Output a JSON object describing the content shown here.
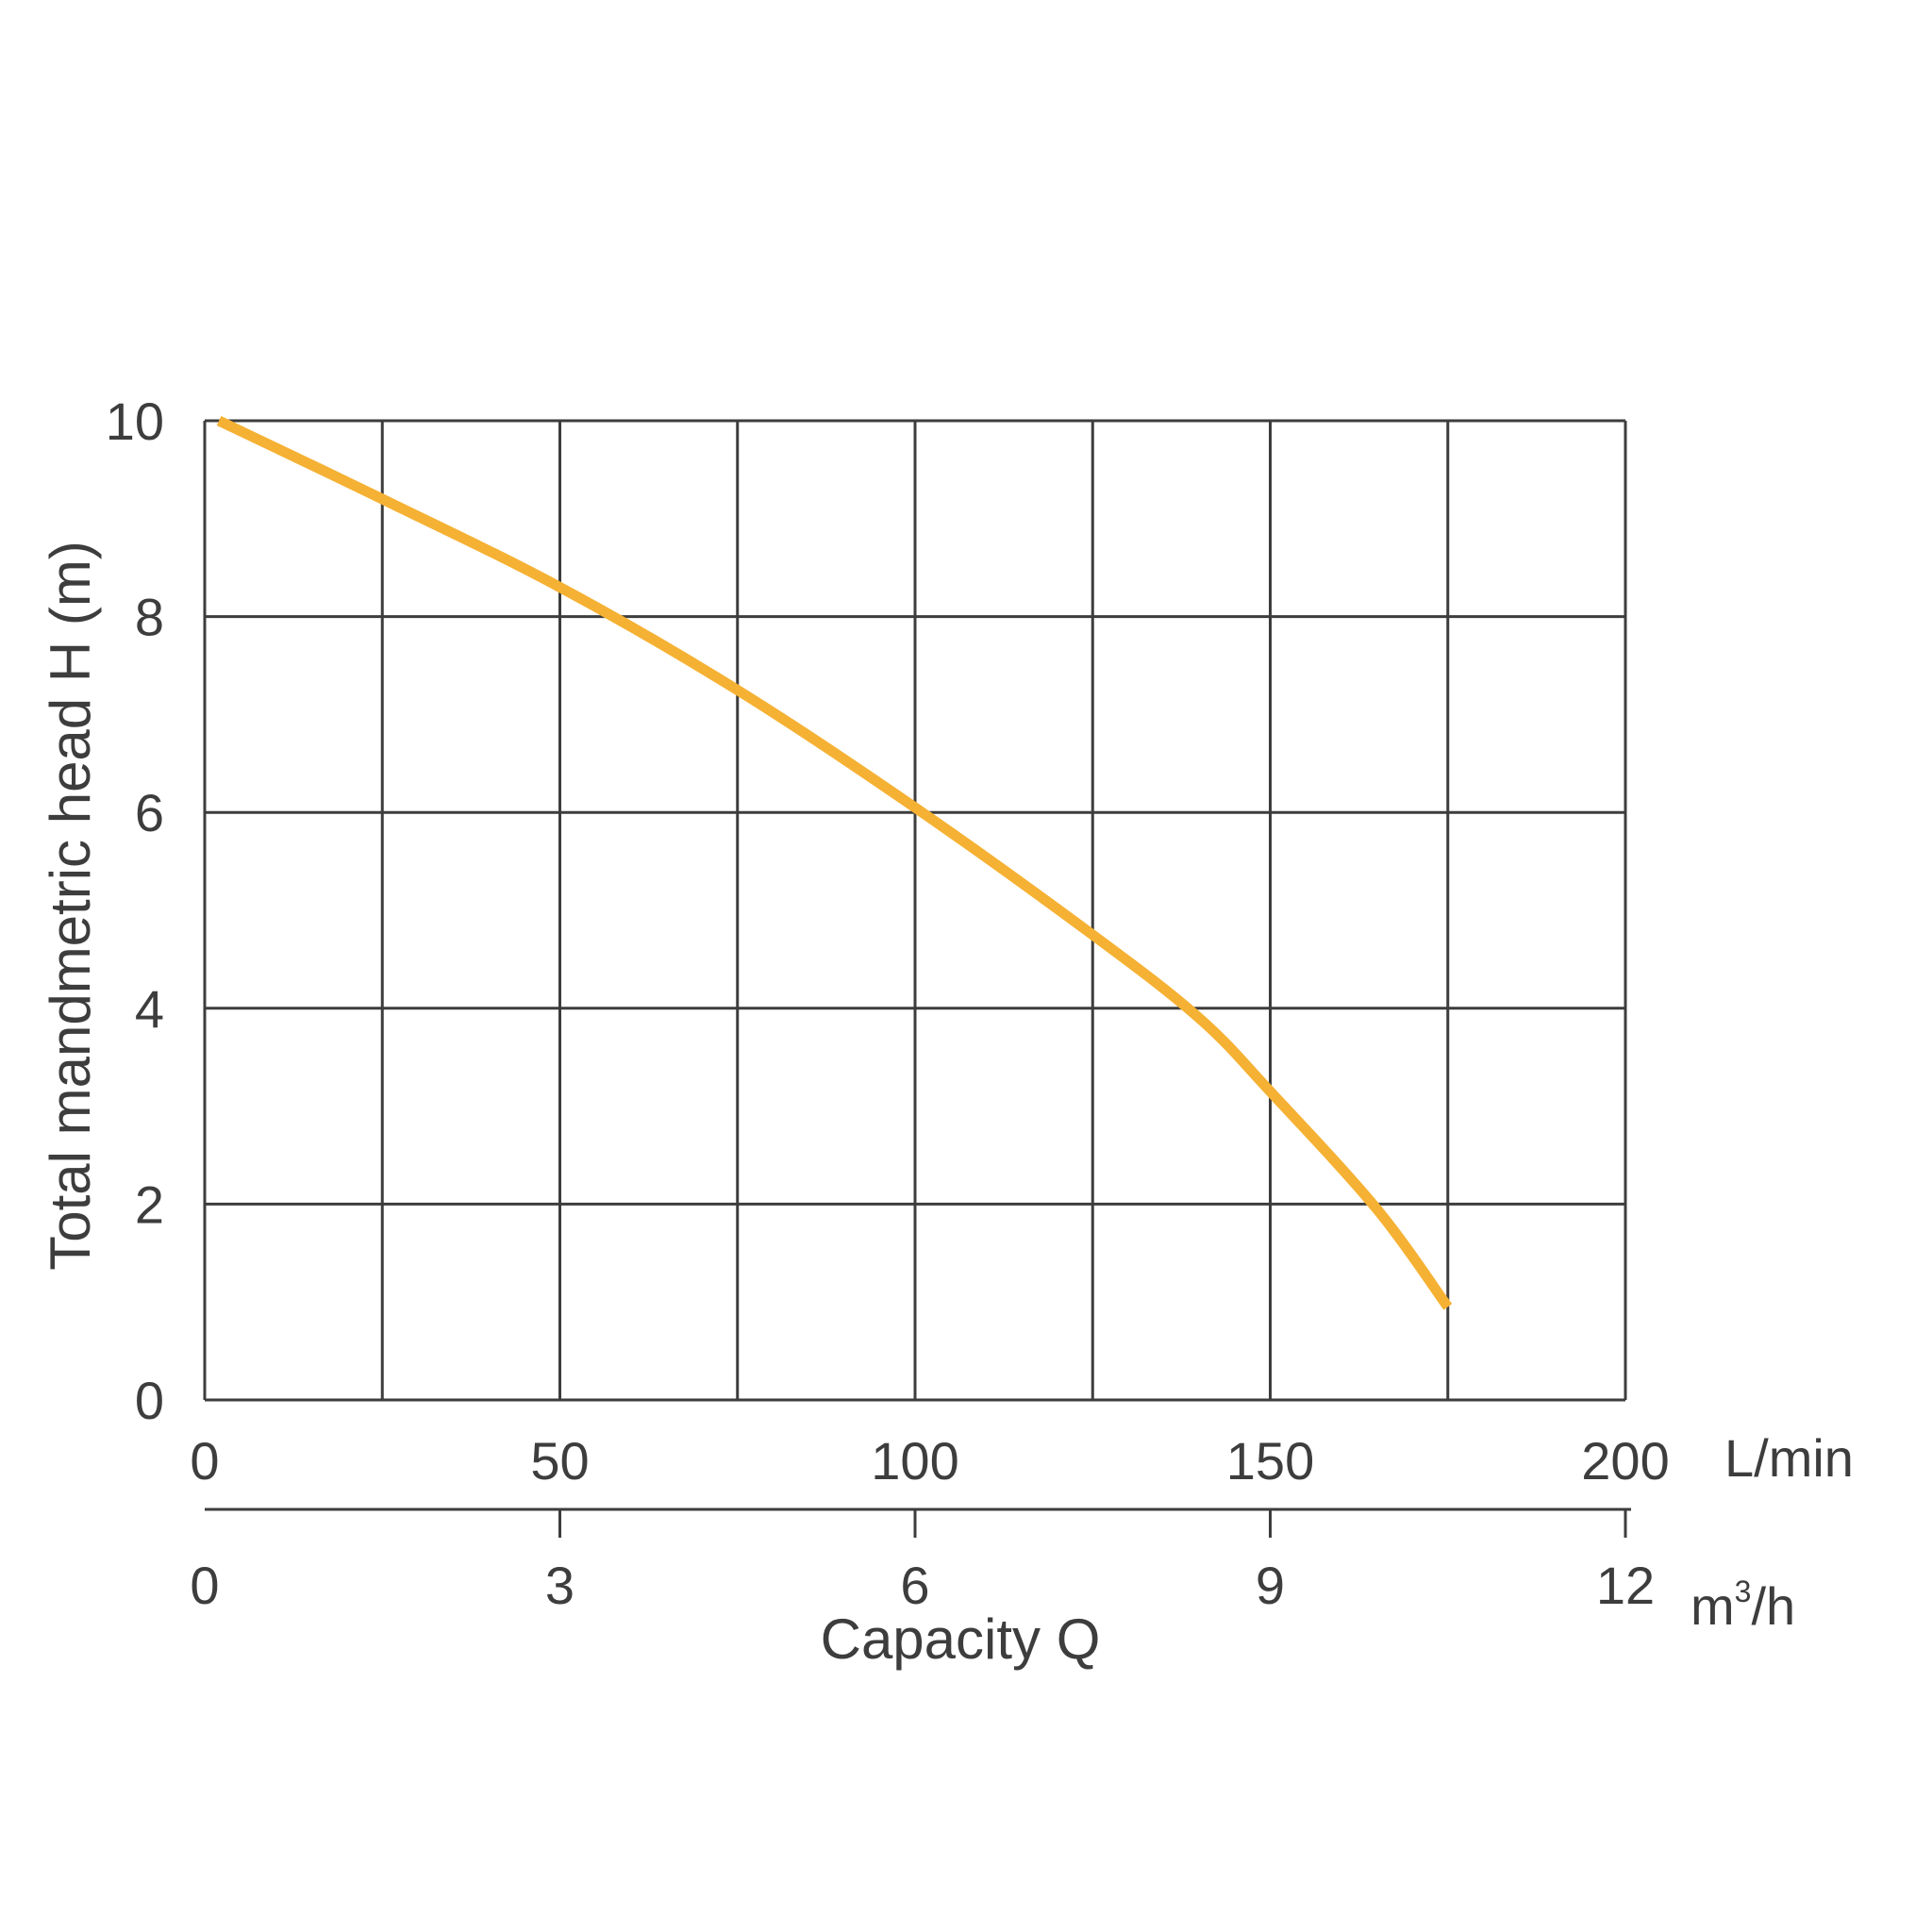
{
  "chart_data": {
    "type": "line",
    "title": "",
    "xlabel": "Capacity Q",
    "ylabel": "Total mandmetric head H (m)",
    "x_unit_primary": "L/min",
    "x_unit_secondary_base": "m",
    "x_unit_secondary_sup": "3",
    "x_unit_secondary_tail": "/h",
    "xlim": [
      0,
      200
    ],
    "ylim": [
      0,
      10
    ],
    "grid": true,
    "x_gridlines": [
      0,
      25,
      50,
      75,
      100,
      125,
      150,
      175,
      200
    ],
    "y_gridlines": [
      0,
      2,
      4,
      6,
      8,
      10
    ],
    "x_ticks_primary": [
      {
        "value": 0,
        "label": "0"
      },
      {
        "value": 50,
        "label": "50"
      },
      {
        "value": 100,
        "label": "100"
      },
      {
        "value": 150,
        "label": "150"
      },
      {
        "value": 200,
        "label": "200"
      }
    ],
    "x_ticks_secondary": [
      {
        "value": 0,
        "label": "0"
      },
      {
        "value": 3,
        "label": "3"
      },
      {
        "value": 6,
        "label": "6"
      },
      {
        "value": 9,
        "label": "9"
      },
      {
        "value": 12,
        "label": "12"
      }
    ],
    "y_ticks": [
      {
        "value": 0,
        "label": "0"
      },
      {
        "value": 2,
        "label": "2"
      },
      {
        "value": 4,
        "label": "4"
      },
      {
        "value": 6,
        "label": "6"
      },
      {
        "value": 8,
        "label": "8"
      },
      {
        "value": 10,
        "label": "10"
      }
    ],
    "series": [
      {
        "color": "#f5b133",
        "x": [
          2,
          25,
          50,
          75,
          100,
          125,
          140,
          150,
          165,
          175
        ],
        "y": [
          10.0,
          9.2,
          8.3,
          7.25,
          6.05,
          4.75,
          3.9,
          3.15,
          1.95,
          0.95
        ]
      }
    ]
  }
}
